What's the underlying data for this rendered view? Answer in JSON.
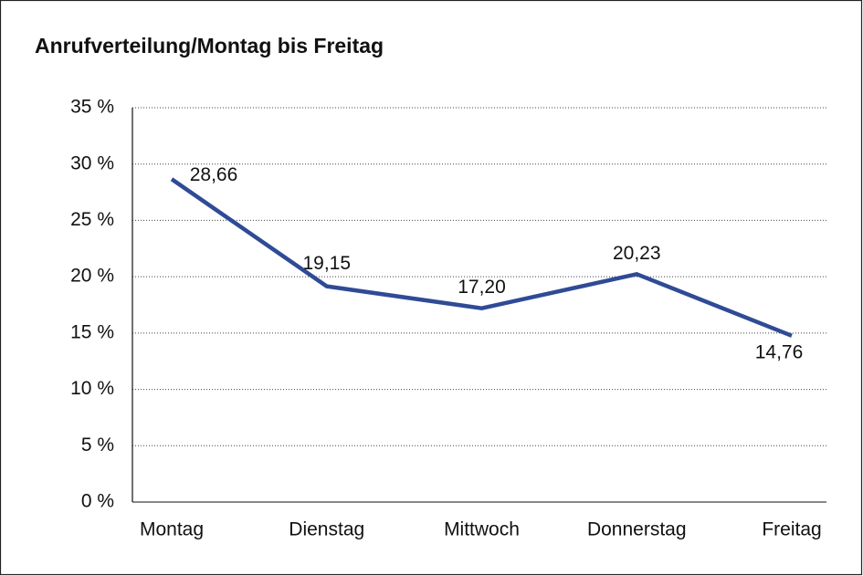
{
  "chart_data": {
    "type": "line",
    "title": "Anrufverteilung/Montag bis Freitag",
    "categories": [
      "Montag",
      "Dienstag",
      "Mittwoch",
      "Donnerstag",
      "Freitag"
    ],
    "values": [
      28.66,
      19.15,
      17.2,
      20.23,
      14.76
    ],
    "value_labels": [
      "28,66",
      "19,15",
      "17,20",
      "20,23",
      "14,76"
    ],
    "color": "#2f4b96",
    "ylim": [
      0,
      35
    ],
    "yticks": [
      {
        "value": 0,
        "label": "0 %"
      },
      {
        "value": 5,
        "label": "5 %"
      },
      {
        "value": 10,
        "label": "10 %"
      },
      {
        "value": 15,
        "label": "15 %"
      },
      {
        "value": 20,
        "label": "20 %"
      },
      {
        "value": 25,
        "label": "25 %"
      },
      {
        "value": 30,
        "label": "30 %"
      },
      {
        "value": 35,
        "label": "35 %"
      }
    ],
    "grid": true
  }
}
